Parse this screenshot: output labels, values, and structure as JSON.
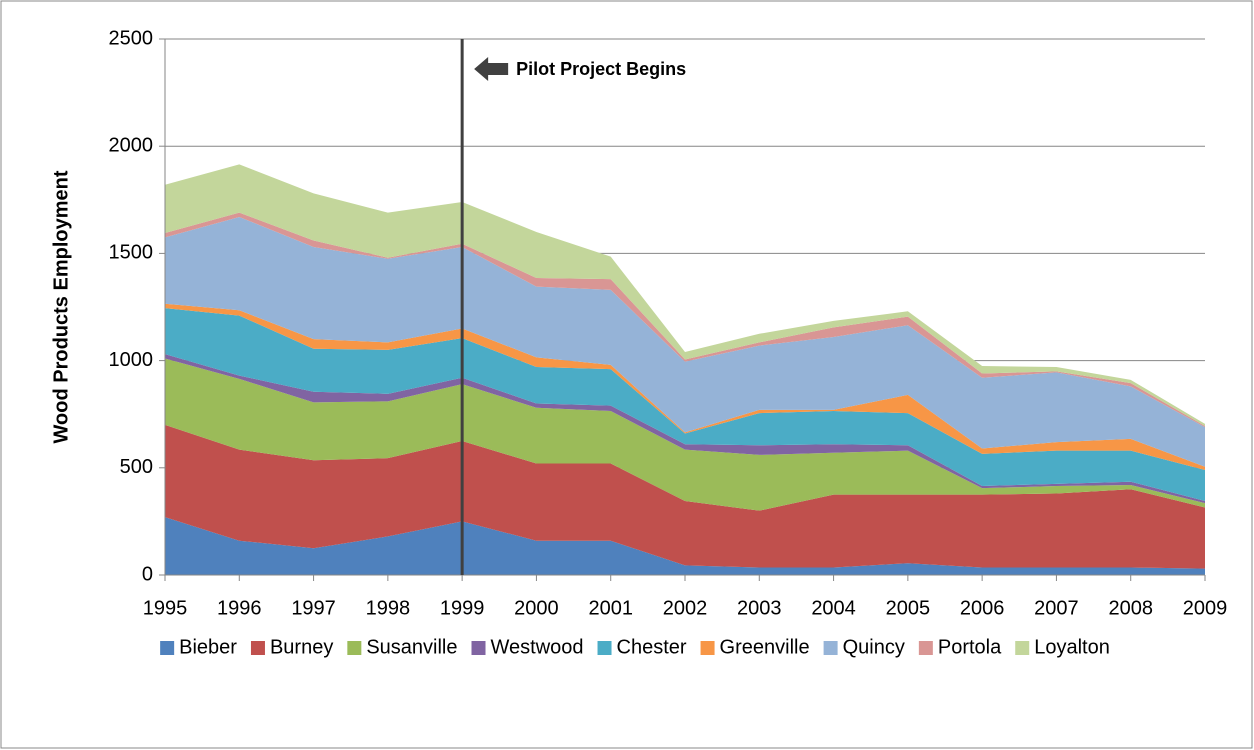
{
  "chart_data": {
    "type": "stacked-area",
    "y_label": "Wood Products Employment",
    "categories": [
      "1995",
      "1996",
      "1997",
      "1998",
      "1999",
      "2000",
      "2001",
      "2002",
      "2003",
      "2004",
      "2005",
      "2006",
      "2007",
      "2008",
      "2009"
    ],
    "series": [
      {
        "name": "Bieber",
        "color": "#4f81bd",
        "values": [
          270,
          160,
          125,
          180,
          250,
          160,
          160,
          45,
          35,
          35,
          55,
          35,
          35,
          35,
          30
        ]
      },
      {
        "name": "Burney",
        "color": "#c0504d",
        "values": [
          430,
          425,
          410,
          365,
          375,
          360,
          360,
          300,
          265,
          340,
          320,
          340,
          345,
          365,
          285
        ]
      },
      {
        "name": "Susanville",
        "color": "#9bbb59",
        "values": [
          310,
          330,
          270,
          265,
          265,
          260,
          245,
          240,
          260,
          195,
          205,
          30,
          35,
          20,
          20
        ]
      },
      {
        "name": "Westwood",
        "color": "#8064a2",
        "values": [
          20,
          15,
          50,
          35,
          30,
          20,
          25,
          25,
          45,
          40,
          25,
          10,
          10,
          15,
          10
        ]
      },
      {
        "name": "Chester",
        "color": "#4bacc6",
        "values": [
          215,
          280,
          200,
          205,
          185,
          170,
          170,
          50,
          150,
          155,
          150,
          150,
          155,
          145,
          145
        ]
      },
      {
        "name": "Greenville",
        "color": "#f79646",
        "values": [
          20,
          25,
          45,
          35,
          45,
          45,
          20,
          5,
          15,
          5,
          85,
          25,
          40,
          55,
          15
        ]
      },
      {
        "name": "Quincy",
        "color": "#95b3d7",
        "values": [
          310,
          435,
          430,
          390,
          380,
          330,
          350,
          330,
          300,
          340,
          325,
          330,
          325,
          245,
          185
        ]
      },
      {
        "name": "Portola",
        "color": "#d99694",
        "values": [
          20,
          20,
          30,
          5,
          15,
          40,
          50,
          10,
          15,
          45,
          40,
          20,
          5,
          15,
          5
        ]
      },
      {
        "name": "Loyalton",
        "color": "#c3d69b",
        "values": [
          225,
          225,
          220,
          210,
          195,
          215,
          105,
          35,
          40,
          30,
          25,
          35,
          20,
          15,
          10
        ]
      }
    ],
    "ylim": [
      0,
      2500
    ],
    "yticks": [
      0,
      500,
      1000,
      1500,
      2000,
      2500
    ],
    "grid": true,
    "annotation": {
      "text": "Pilot Project Begins",
      "category": "1999"
    },
    "legend": "bottom"
  }
}
